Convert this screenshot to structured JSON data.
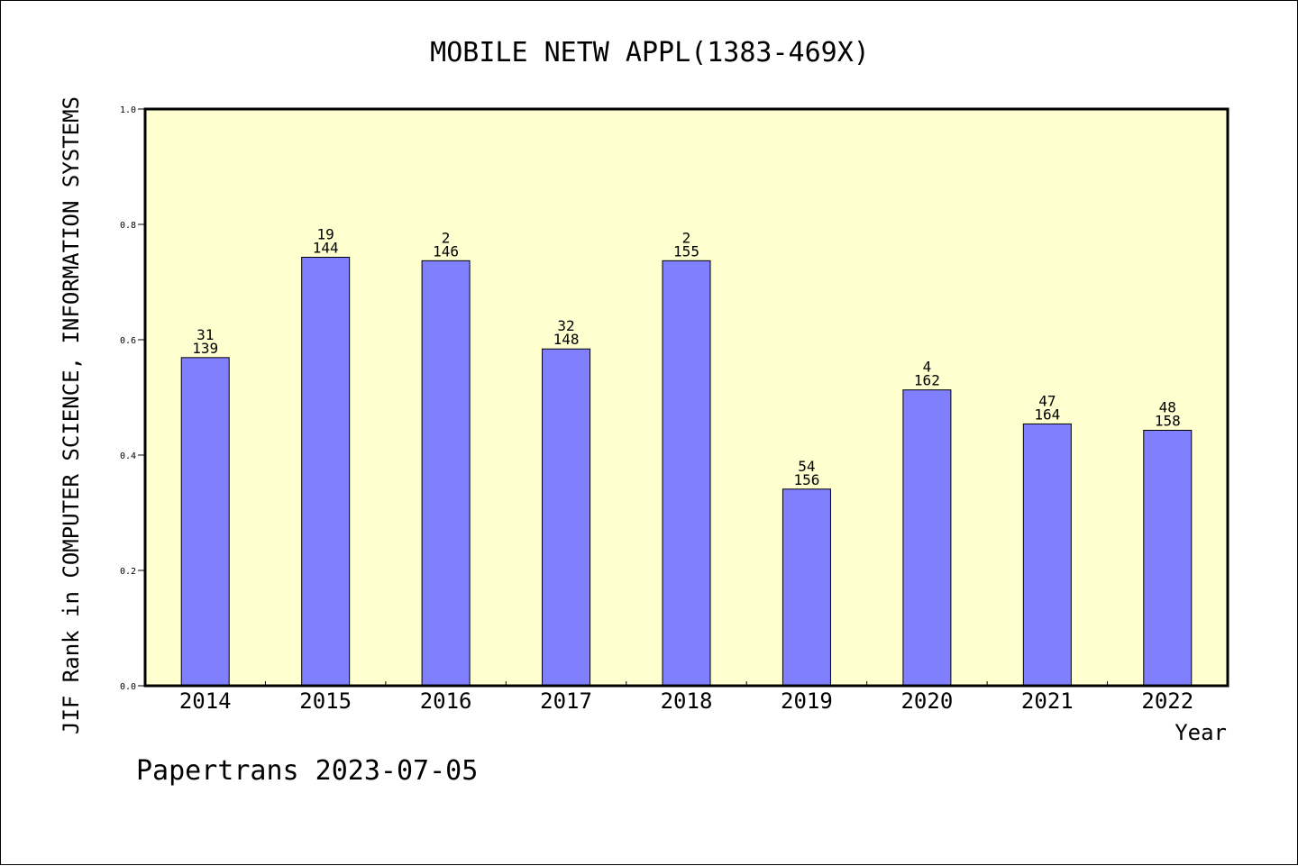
{
  "chart_data": {
    "type": "bar",
    "title": "MOBILE NETW APPL(1383-469X)",
    "xlabel": "Year",
    "ylabel": "JIF Rank in COMPUTER SCIENCE, INFORMATION SYSTEMS",
    "categories": [
      "2014",
      "2015",
      "2016",
      "2017",
      "2018",
      "2019",
      "2020",
      "2021",
      "2022"
    ],
    "values": [
      0.569,
      0.743,
      0.737,
      0.584,
      0.737,
      0.341,
      0.513,
      0.454,
      0.443
    ],
    "rank_top": [
      "31",
      "19",
      "2",
      "32",
      "2",
      "54",
      "4",
      "47",
      "48"
    ],
    "rank_bottom": [
      "139",
      "144",
      "146",
      "148",
      "155",
      "156",
      "162",
      "164",
      "158"
    ],
    "ylim": [
      0,
      1.0
    ],
    "yticks": [
      "0.0",
      "0.2",
      "0.4",
      "0.6",
      "0.8",
      "1.0"
    ],
    "grid": false,
    "colors": {
      "bar": "#8080ff",
      "plot_bg": "#ffffd0",
      "axis": "#000000"
    }
  },
  "footer": "Papertrans 2023-07-05"
}
